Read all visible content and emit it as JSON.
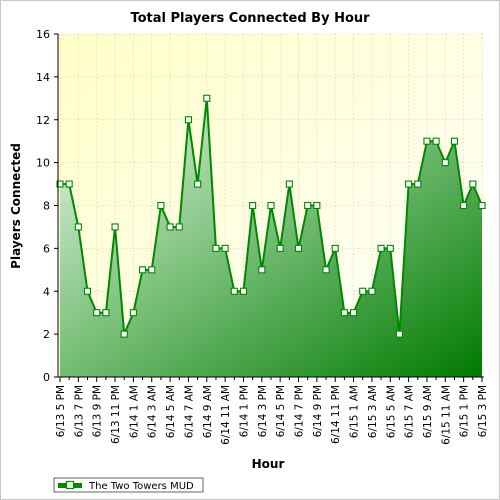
{
  "chart_data": {
    "type": "area",
    "title": "Total Players Connected By Hour",
    "xlabel": "Hour",
    "ylabel": "Players Connected",
    "ylim": [
      0,
      16
    ],
    "yticks": [
      0,
      2,
      4,
      6,
      8,
      10,
      12,
      14,
      16
    ],
    "grid": true,
    "legend_position": "bottom-left",
    "colors": {
      "line": "#008800",
      "fill_light": "#d6eed6",
      "fill_dark": "#007a00",
      "plot_bg_top": "#ffffcc",
      "plot_bg_bottom": "#ffffff"
    },
    "tick_labels": [
      "6/13 5 PM",
      "6/13 7 PM",
      "6/13 9 PM",
      "6/13 11 PM",
      "6/14 1 AM",
      "6/14 3 AM",
      "6/14 5 AM",
      "6/14 7 AM",
      "6/14 9 AM",
      "6/14 11 AM",
      "6/14 1 PM",
      "6/14 3 PM",
      "6/14 5 PM",
      "6/14 7 PM",
      "6/14 9 PM",
      "6/14 11 PM",
      "6/15 1 AM",
      "6/15 3 AM",
      "6/15 5 AM",
      "6/15 7 AM",
      "6/15 9 AM",
      "6/15 11 AM",
      "6/15 1 PM",
      "6/15 3 PM"
    ],
    "series": [
      {
        "name": "The Two Towers MUD",
        "values": [
          9,
          9,
          7,
          4,
          3,
          3,
          7,
          2,
          3,
          5,
          5,
          8,
          7,
          7,
          12,
          9,
          13,
          6,
          6,
          4,
          4,
          8,
          5,
          8,
          6,
          9,
          6,
          8,
          8,
          5,
          6,
          3,
          3,
          4,
          4,
          6,
          6,
          2,
          9,
          9,
          11,
          11,
          10,
          11,
          8,
          9,
          8
        ]
      }
    ]
  }
}
